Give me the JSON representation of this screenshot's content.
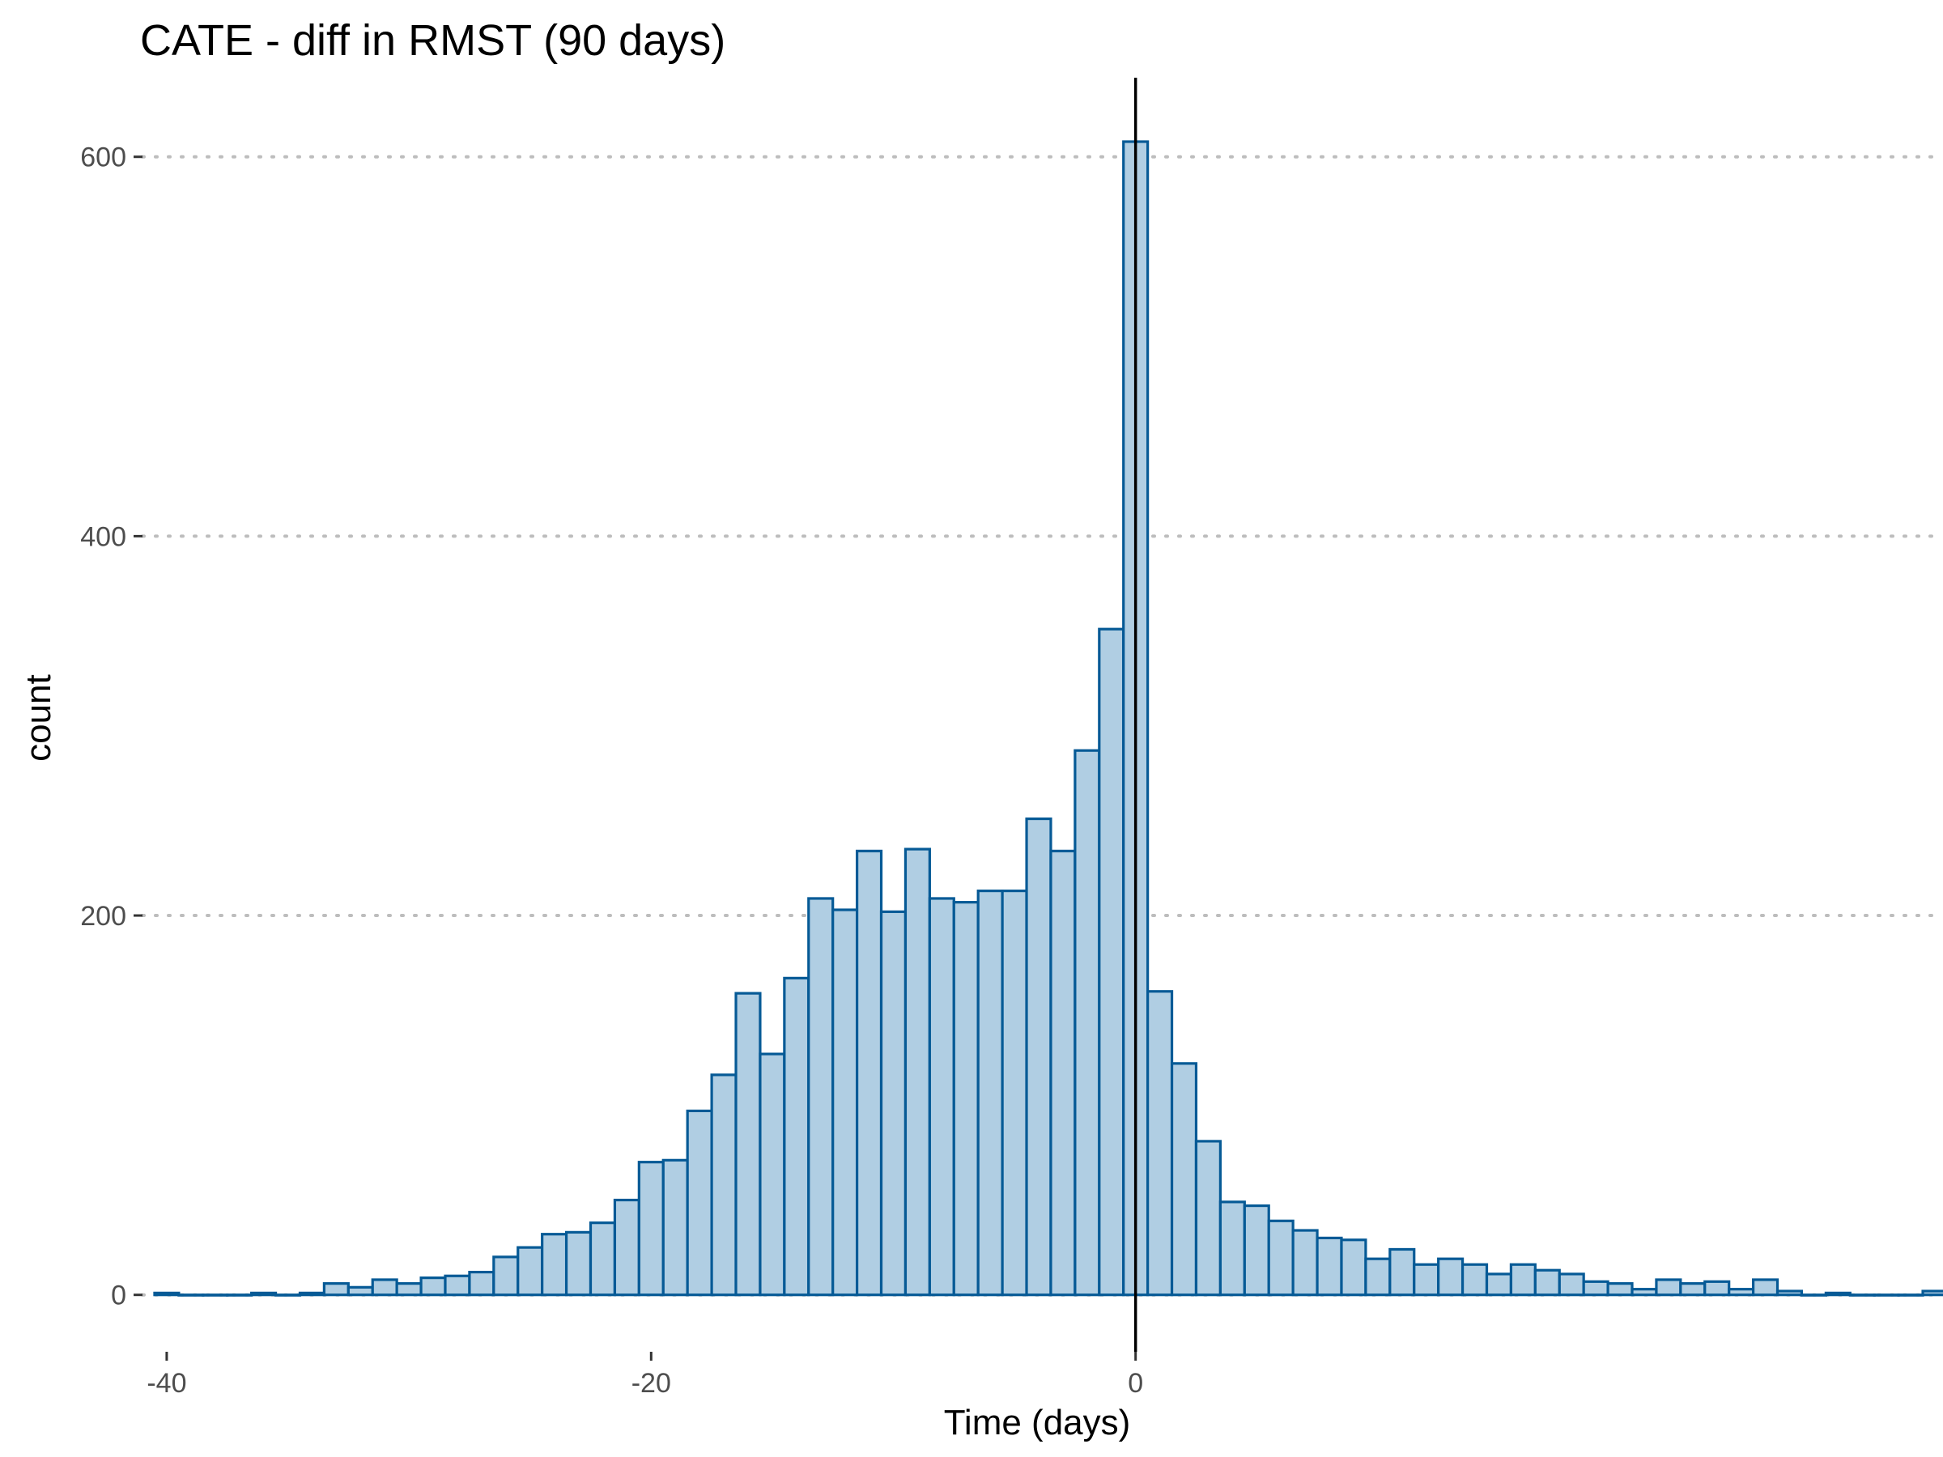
{
  "chart_data": {
    "type": "bar",
    "title": "CATE - diff in RMST (90 days)",
    "xlabel": "Time (days)",
    "ylabel": "count",
    "x_ticks": [
      -40,
      -20,
      0
    ],
    "y_ticks": [
      0,
      200,
      400,
      600
    ],
    "xlim": [
      -41,
      33
    ],
    "ylim": [
      -30,
      640
    ],
    "bin_width": 1,
    "x": [
      -40,
      -39,
      -38,
      -37,
      -36,
      -35,
      -34,
      -33,
      -32,
      -31,
      -30,
      -29,
      -28,
      -27,
      -26,
      -25,
      -24,
      -23,
      -22,
      -21,
      -20,
      -19,
      -18,
      -17,
      -16,
      -15,
      -14,
      -13,
      -12,
      -11,
      -10,
      -9,
      -8,
      -7,
      -6,
      -5,
      -4,
      -3,
      -2,
      -1,
      0,
      1,
      2,
      3,
      4,
      5,
      6,
      7,
      8,
      9,
      10,
      11,
      12,
      13,
      14,
      15,
      16,
      17,
      18,
      19,
      20,
      21,
      22,
      23,
      24,
      25,
      26,
      27,
      28,
      29,
      30,
      31,
      32,
      33
    ],
    "values": [
      1,
      0,
      0,
      0,
      1,
      0,
      1,
      6,
      4,
      8,
      6,
      9,
      10,
      12,
      20,
      25,
      32,
      33,
      38,
      50,
      70,
      71,
      97,
      116,
      159,
      127,
      167,
      209,
      203,
      234,
      202,
      235,
      209,
      207,
      213,
      213,
      251,
      234,
      287,
      351,
      608,
      160,
      122,
      81,
      49,
      47,
      39,
      34,
      30,
      29,
      19,
      24,
      16,
      19,
      16,
      11,
      16,
      13,
      11,
      7,
      6,
      3,
      8,
      6,
      7,
      3,
      8,
      2,
      0,
      1,
      0,
      0,
      0,
      2
    ],
    "reference_line_x": 0,
    "grid": "horizontal dotted at y ticks",
    "legend": "none",
    "colors": {
      "bar_fill": "#b0cee3",
      "bar_stroke": "#065a96",
      "reference_line": "#000000",
      "grid": "#bdbdbd",
      "tick_label": "#4d4d4d",
      "text": "#000000"
    }
  }
}
